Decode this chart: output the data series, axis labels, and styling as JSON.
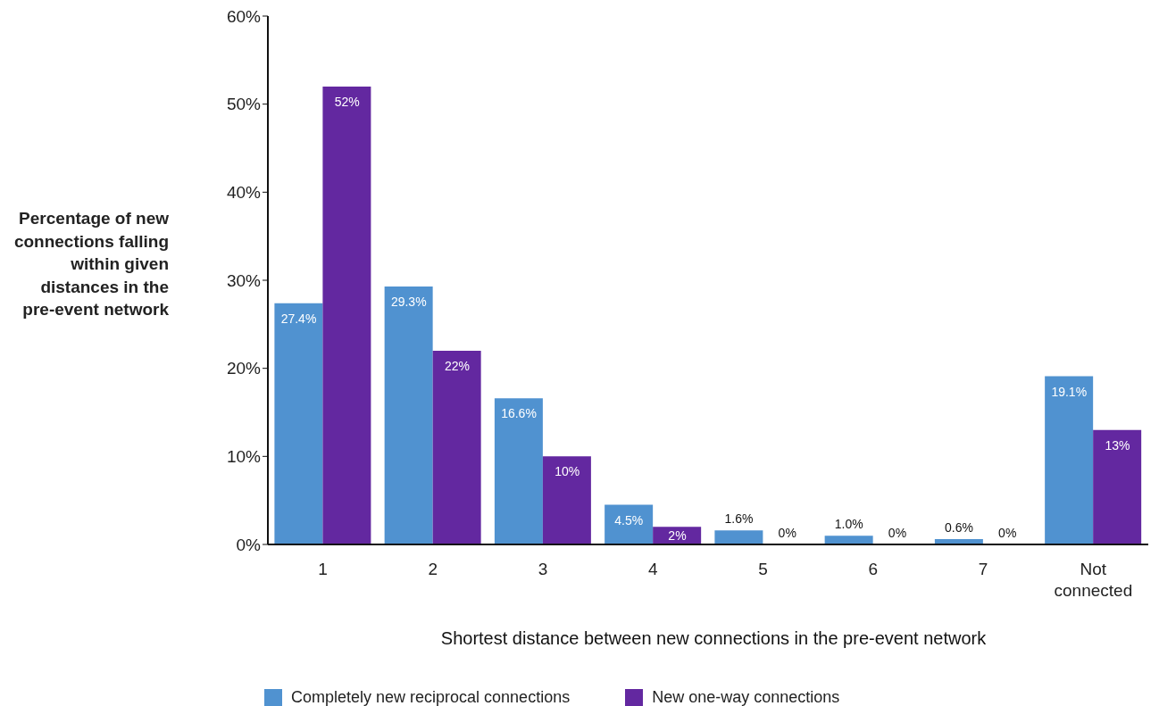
{
  "chart_data": {
    "type": "bar",
    "xlabel": "Shortest distance between new connections in the pre-event network",
    "ylabel": "Percentage of new connections falling within given distances in the pre-event network",
    "categories": [
      "1",
      "2",
      "3",
      "4",
      "5",
      "6",
      "7",
      "Not connected"
    ],
    "series": [
      {
        "name": "Completely new reciprocal connections",
        "color": "#5092d0",
        "values": [
          27.4,
          29.3,
          16.6,
          4.5,
          1.6,
          1.0,
          0.6,
          19.1
        ],
        "value_labels": [
          "27.4%",
          "29.3%",
          "16.6%",
          "4.5%",
          "1.6%",
          "1.0%",
          "0.6%",
          "19.1%"
        ]
      },
      {
        "name": "New one-way connections",
        "color": "#6328a0",
        "values": [
          52,
          22,
          10,
          2,
          0,
          0,
          0,
          13
        ],
        "value_labels": [
          "52%",
          "22%",
          "10%",
          "2%",
          "0%",
          "0%",
          "0%",
          "13%"
        ]
      }
    ],
    "ylim": [
      0,
      60
    ],
    "yticks": [
      {
        "value": 0,
        "label": "0%"
      },
      {
        "value": 10,
        "label": "10%"
      },
      {
        "value": 20,
        "label": "20%"
      },
      {
        "value": 30,
        "label": "30%"
      },
      {
        "value": 40,
        "label": "40%"
      },
      {
        "value": 50,
        "label": "50%"
      },
      {
        "value": 60,
        "label": "60%"
      }
    ],
    "grid": false,
    "legend": "bottom"
  }
}
